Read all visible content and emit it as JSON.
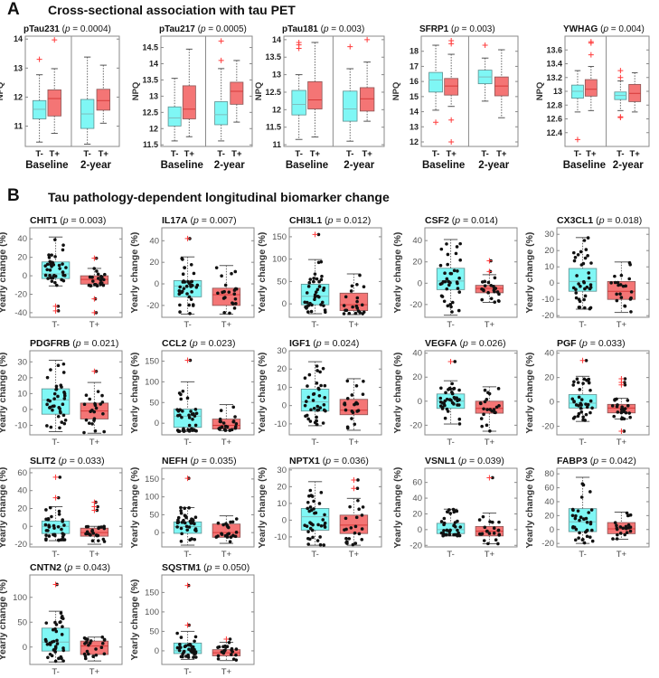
{
  "panel_a": {
    "letter": "A",
    "title": "Cross-sectional association with tau PET"
  },
  "panel_b": {
    "letter": "B",
    "title": "Tau pathology-dependent longitudinal biomarker change"
  },
  "colors": {
    "tau_negative": "#7ff7f5",
    "tau_positive": "#f47575",
    "outlier": "#ff3b3b",
    "point": "#111111"
  },
  "chart_data": [
    {
      "type": "box",
      "panel": "A",
      "title": "pTau231",
      "p_value": "0.0004",
      "ylabel": "NPQ",
      "groups": [
        "Baseline",
        "2-year"
      ],
      "categories": [
        "T-",
        "T+",
        "T-",
        "T+"
      ],
      "ylim": [
        10.3,
        14.1
      ],
      "yticks": [
        11,
        12,
        13,
        14
      ],
      "boxes": [
        {
          "stats": [
            10.45,
            11.25,
            11.58,
            11.88,
            12.77
          ],
          "outliers": [
            13.3
          ]
        },
        {
          "stats": [
            10.75,
            11.35,
            11.95,
            12.25,
            12.98
          ],
          "outliers": [
            13.97
          ]
        },
        {
          "stats": [
            10.38,
            10.92,
            11.42,
            11.92,
            13.38
          ],
          "outliers": []
        },
        {
          "stats": [
            11.1,
            11.55,
            11.88,
            12.27,
            13.1
          ],
          "outliers": []
        }
      ]
    },
    {
      "type": "box",
      "panel": "A",
      "title": "pTau217",
      "p_value": "0.0005",
      "ylabel": "NPQ",
      "groups": [
        "Baseline",
        "2-year"
      ],
      "categories": [
        "T-",
        "T+",
        "T-",
        "T+"
      ],
      "ylim": [
        11.45,
        14.85
      ],
      "yticks": [
        11.5,
        12,
        12.5,
        13,
        13.5,
        14,
        14.5
      ],
      "boxes": [
        {
          "stats": [
            11.62,
            12.08,
            12.33,
            12.67,
            13.55
          ],
          "outliers": []
        },
        {
          "stats": [
            11.75,
            12.3,
            12.6,
            13.32,
            14.45
          ],
          "outliers": []
        },
        {
          "stats": [
            11.62,
            12.12,
            12.43,
            12.83,
            13.85
          ],
          "outliers": [
            14.1,
            14.7
          ]
        },
        {
          "stats": [
            12.2,
            12.75,
            13.15,
            13.43,
            14.1
          ],
          "outliers": []
        }
      ]
    },
    {
      "type": "box",
      "panel": "A",
      "title": "pTau181",
      "p_value": "0.003",
      "ylabel": "NPQ",
      "groups": [
        "Baseline",
        "2-year"
      ],
      "categories": [
        "T-",
        "T+",
        "T-",
        "T+"
      ],
      "ylim": [
        10.95,
        14.1
      ],
      "yticks": [
        11,
        11.5,
        12,
        12.5,
        13,
        13.5,
        14
      ],
      "boxes": [
        {
          "stats": [
            11.15,
            11.85,
            12.15,
            12.55,
            13.0
          ],
          "outliers": [
            13.75,
            13.85,
            13.92
          ]
        },
        {
          "stats": [
            11.22,
            12.02,
            12.28,
            12.8,
            13.92
          ],
          "outliers": []
        },
        {
          "stats": [
            11.1,
            11.67,
            12.02,
            12.53,
            13.17
          ],
          "outliers": [
            13.8
          ]
        },
        {
          "stats": [
            11.67,
            11.96,
            12.31,
            12.63,
            13.36
          ],
          "outliers": [
            14.0
          ]
        }
      ]
    },
    {
      "type": "box",
      "panel": "A",
      "title": "SFRP1",
      "p_value": "0.003",
      "ylabel": "NPQ",
      "groups": [
        "Baseline",
        "2-year"
      ],
      "categories": [
        "T-",
        "T+",
        "T-",
        "T+"
      ],
      "ylim": [
        11.7,
        19
      ],
      "yticks": [
        12,
        13,
        14,
        15,
        16,
        17,
        18
      ],
      "boxes": [
        {
          "stats": [
            14.1,
            15.3,
            16.1,
            16.6,
            18.4
          ],
          "outliers": [
            13.3
          ]
        },
        {
          "stats": [
            14.35,
            15.1,
            15.7,
            16.2,
            17.8
          ],
          "outliers": [
            18.7,
            18.5,
            13.45,
            12.0
          ]
        },
        {
          "stats": [
            14.7,
            15.85,
            16.3,
            16.75,
            17.55
          ],
          "outliers": [
            18.4
          ]
        },
        {
          "stats": [
            13.6,
            15.05,
            15.7,
            16.3,
            18.1
          ],
          "outliers": []
        }
      ]
    },
    {
      "type": "box",
      "panel": "A",
      "title": "YWHAG",
      "p_value": "0.004",
      "ylabel": "NPQ",
      "groups": [
        "Baseline",
        "2-year"
      ],
      "categories": [
        "T-",
        "T+",
        "T-",
        "T+"
      ],
      "ylim": [
        12.2,
        13.8
      ],
      "yticks": [
        12.4,
        12.6,
        12.8,
        13,
        13.2,
        13.4,
        13.6
      ],
      "boxes": [
        {
          "stats": [
            12.7,
            12.9,
            13.0,
            13.09,
            13.3
          ],
          "outliers": [
            12.3
          ]
        },
        {
          "stats": [
            12.72,
            12.93,
            13.03,
            13.17,
            13.36
          ],
          "outliers": [
            13.72,
            13.7,
            13.53
          ]
        },
        {
          "stats": [
            12.72,
            12.88,
            12.94,
            12.99,
            13.15
          ],
          "outliers": [
            13.3,
            13.2,
            12.63,
            12.62
          ]
        },
        {
          "stats": [
            12.7,
            12.85,
            12.97,
            13.1,
            13.27
          ],
          "outliers": []
        }
      ]
    },
    {
      "type": "box",
      "panel": "B",
      "title": "CHIT1",
      "p_value": "0.003",
      "ylabel": "Yearly change (%)",
      "categories": [
        "T-",
        "T+"
      ],
      "ylim": [
        -45,
        52
      ],
      "yticks": [
        -40,
        -20,
        0,
        20,
        40
      ],
      "boxes": [
        {
          "stats": [
            -11,
            -3,
            2,
            15,
            42
          ],
          "outliers": [
            -33,
            -38
          ]
        },
        {
          "stats": [
            -11,
            -9,
            -4,
            0,
            8
          ],
          "outliers": [
            19,
            -25,
            -40
          ]
        }
      ]
    },
    {
      "type": "box",
      "panel": "B",
      "title": "IL17A",
      "p_value": "0.007",
      "ylabel": "Yearly change (%)",
      "categories": [
        "T-",
        "T+"
      ],
      "ylim": [
        -31,
        52
      ],
      "yticks": [
        -20,
        0,
        20,
        40
      ],
      "boxes": [
        {
          "stats": [
            -28,
            -12,
            -2,
            3,
            25
          ],
          "outliers": [
            42
          ]
        },
        {
          "stats": [
            -28,
            -20,
            -10,
            -4,
            17
          ],
          "outliers": []
        }
      ]
    },
    {
      "type": "box",
      "panel": "B",
      "title": "CHI3L1",
      "p_value": "0.012",
      "ylabel": "Yearly change (%)",
      "categories": [
        "T-",
        "T+"
      ],
      "ylim": [
        -30,
        170
      ],
      "yticks": [
        0,
        50,
        100,
        150
      ],
      "boxes": [
        {
          "stats": [
            -22,
            -2,
            17,
            44,
            99
          ],
          "outliers": [
            155
          ]
        },
        {
          "stats": [
            -24,
            -15,
            -2,
            24,
            67
          ],
          "outliers": []
        }
      ]
    },
    {
      "type": "box",
      "panel": "B",
      "title": "CSF2",
      "p_value": "0.014",
      "ylabel": "Yearly change (%)",
      "categories": [
        "T-",
        "T+"
      ],
      "ylim": [
        -32,
        52
      ],
      "yticks": [
        -20,
        0,
        20,
        40
      ],
      "boxes": [
        {
          "stats": [
            -30,
            -6,
            2,
            14,
            41
          ],
          "outliers": []
        },
        {
          "stats": [
            -18,
            -9,
            -5,
            -2,
            8
          ],
          "outliers": [
            21,
            11
          ]
        }
      ]
    },
    {
      "type": "box",
      "panel": "B",
      "title": "CX3CL1",
      "p_value": "0.018",
      "ylabel": "Yearly change (%)",
      "categories": [
        "T-",
        "T+"
      ],
      "ylim": [
        -21,
        34
      ],
      "yticks": [
        -20,
        -10,
        0,
        10,
        20,
        30
      ],
      "boxes": [
        {
          "stats": [
            -16,
            -5,
            1,
            9,
            28
          ],
          "outliers": []
        },
        {
          "stats": [
            -18,
            -10,
            -5,
            1,
            13
          ],
          "outliers": []
        }
      ]
    },
    {
      "type": "box",
      "panel": "B",
      "title": "PDGFRB",
      "p_value": "0.021",
      "ylabel": "Yearly change (%)",
      "categories": [
        "T-",
        "T+"
      ],
      "ylim": [
        -16,
        37
      ],
      "yticks": [
        -10,
        0,
        10,
        20,
        30
      ],
      "boxes": [
        {
          "stats": [
            -14,
            -3,
            6,
            13,
            31
          ],
          "outliers": []
        },
        {
          "stats": [
            -15,
            -6,
            -1,
            4,
            17
          ],
          "outliers": [
            24
          ]
        }
      ]
    },
    {
      "type": "box",
      "panel": "B",
      "title": "CCL2",
      "p_value": "0.023",
      "ylabel": "Yearly change (%)",
      "categories": [
        "T-",
        "T+"
      ],
      "ylim": [
        -28,
        175
      ],
      "yticks": [
        0,
        50,
        100,
        150
      ],
      "boxes": [
        {
          "stats": [
            -20,
            -10,
            17,
            34,
            100
          ],
          "outliers": [
            152
          ]
        },
        {
          "stats": [
            -18,
            -14,
            -5,
            10,
            45
          ],
          "outliers": []
        }
      ]
    },
    {
      "type": "box",
      "panel": "B",
      "title": "IGF1",
      "p_value": "0.024",
      "ylabel": "Yearly change (%)",
      "categories": [
        "T-",
        "T+"
      ],
      "ylim": [
        -16,
        30
      ],
      "yticks": [
        -10,
        0,
        10,
        20,
        30
      ],
      "boxes": [
        {
          "stats": [
            -11,
            -3,
            2,
            9,
            24
          ],
          "outliers": []
        },
        {
          "stats": [
            -13.5,
            -5,
            -2.5,
            3.4,
            14.7
          ],
          "outliers": []
        }
      ]
    },
    {
      "type": "box",
      "panel": "B",
      "title": "VEGFA",
      "p_value": "0.026",
      "ylabel": "Yearly change (%)",
      "categories": [
        "T-",
        "T+"
      ],
      "ylim": [
        -28,
        42
      ],
      "yticks": [
        -20,
        0,
        20,
        40
      ],
      "boxes": [
        {
          "stats": [
            -19,
            -6,
            0,
            6,
            17
          ],
          "outliers": [
            33
          ]
        },
        {
          "stats": [
            -25,
            -10,
            -6,
            0,
            12
          ],
          "outliers": []
        }
      ]
    },
    {
      "type": "box",
      "panel": "B",
      "title": "PGF",
      "p_value": "0.033",
      "ylabel": "Yearly change (%)",
      "categories": [
        "T-",
        "T+"
      ],
      "ylim": [
        -27,
        42
      ],
      "yticks": [
        -20,
        0,
        20,
        40
      ],
      "boxes": [
        {
          "stats": [
            -16,
            -5,
            -1,
            6,
            21
          ],
          "outliers": [
            34
          ]
        },
        {
          "stats": [
            -14,
            -9,
            -5,
            -2,
            3
          ],
          "outliers": [
            19,
            16,
            14,
            -24
          ]
        }
      ]
    },
    {
      "type": "box",
      "panel": "B",
      "title": "SLIT2",
      "p_value": "0.033",
      "ylabel": "Yearly change (%)",
      "categories": [
        "T-",
        "T+"
      ],
      "ylim": [
        -23,
        65
      ],
      "yticks": [
        -20,
        0,
        20,
        40,
        60
      ],
      "boxes": [
        {
          "stats": [
            -16,
            -8,
            0,
            6,
            22
          ],
          "outliers": [
            55,
            32
          ]
        },
        {
          "stats": [
            -20,
            -11,
            -7,
            -2,
            0
          ],
          "outliers": [
            27,
            22,
            18
          ]
        }
      ]
    },
    {
      "type": "box",
      "panel": "B",
      "title": "NEFH",
      "p_value": "0.035",
      "ylabel": "Yearly change (%)",
      "categories": [
        "T-",
        "T+"
      ],
      "ylim": [
        -40,
        180
      ],
      "yticks": [
        0,
        50,
        100,
        150
      ],
      "boxes": [
        {
          "stats": [
            -35,
            -2,
            17,
            30,
            70
          ],
          "outliers": [
            152
          ]
        },
        {
          "stats": [
            -30,
            -13,
            0,
            24,
            47
          ],
          "outliers": []
        }
      ]
    },
    {
      "type": "box",
      "panel": "B",
      "title": "NPTX1",
      "p_value": "0.036",
      "ylabel": "Yearly change (%)",
      "categories": [
        "T-",
        "T+"
      ],
      "ylim": [
        -16,
        31
      ],
      "yticks": [
        -10,
        0,
        10,
        20,
        30
      ],
      "boxes": [
        {
          "stats": [
            -15,
            -6,
            2,
            7,
            23
          ],
          "outliers": []
        },
        {
          "stats": [
            -15,
            -8,
            -3,
            3,
            13
          ],
          "outliers": [
            24,
            19
          ]
        }
      ]
    },
    {
      "type": "box",
      "panel": "B",
      "title": "VSNL1",
      "p_value": "0.039",
      "ylabel": "Yearly change (%)",
      "categories": [
        "T-",
        "T+"
      ],
      "ylim": [
        -22,
        78
      ],
      "yticks": [
        -20,
        0,
        20,
        40,
        60
      ],
      "boxes": [
        {
          "stats": [
            -8,
            -5,
            0,
            8,
            26
          ],
          "outliers": []
        },
        {
          "stats": [
            -18,
            -8,
            -2,
            4,
            21
          ],
          "outliers": [
            66
          ]
        }
      ]
    },
    {
      "type": "box",
      "panel": "B",
      "title": "FABP3",
      "p_value": "0.042",
      "ylabel": "Yearly change (%)",
      "categories": [
        "T-",
        "T+"
      ],
      "ylim": [
        -25,
        88
      ],
      "yticks": [
        -20,
        0,
        20,
        40,
        60,
        80
      ],
      "boxes": [
        {
          "stats": [
            -20,
            -3,
            11,
            30,
            75
          ],
          "outliers": []
        },
        {
          "stats": [
            -14,
            -6,
            1,
            10,
            25
          ],
          "outliers": []
        }
      ]
    },
    {
      "type": "box",
      "panel": "B",
      "title": "CNTN2",
      "p_value": "0.043",
      "ylabel": "Yearly change (%)",
      "categories": [
        "T-",
        "T+"
      ],
      "ylim": [
        -35,
        145
      ],
      "yticks": [
        0,
        50,
        100
      ],
      "boxes": [
        {
          "stats": [
            -30,
            -8,
            10,
            38,
            72
          ],
          "outliers": [
            126
          ]
        },
        {
          "stats": [
            -28,
            -15,
            2,
            12,
            20
          ],
          "outliers": []
        }
      ]
    },
    {
      "type": "box",
      "panel": "B",
      "title": "SQSTM1",
      "p_value": "0.050",
      "ylabel": "Yearly change (%)",
      "categories": [
        "T-",
        "T+"
      ],
      "ylim": [
        -35,
        195
      ],
      "yticks": [
        0,
        50,
        100,
        150
      ],
      "boxes": [
        {
          "stats": [
            -22,
            -7,
            0,
            20,
            50
          ],
          "outliers": [
            168,
            66
          ]
        },
        {
          "stats": [
            -25,
            -13,
            -5,
            3,
            22
          ],
          "outliers": [
            30
          ]
        }
      ]
    }
  ]
}
